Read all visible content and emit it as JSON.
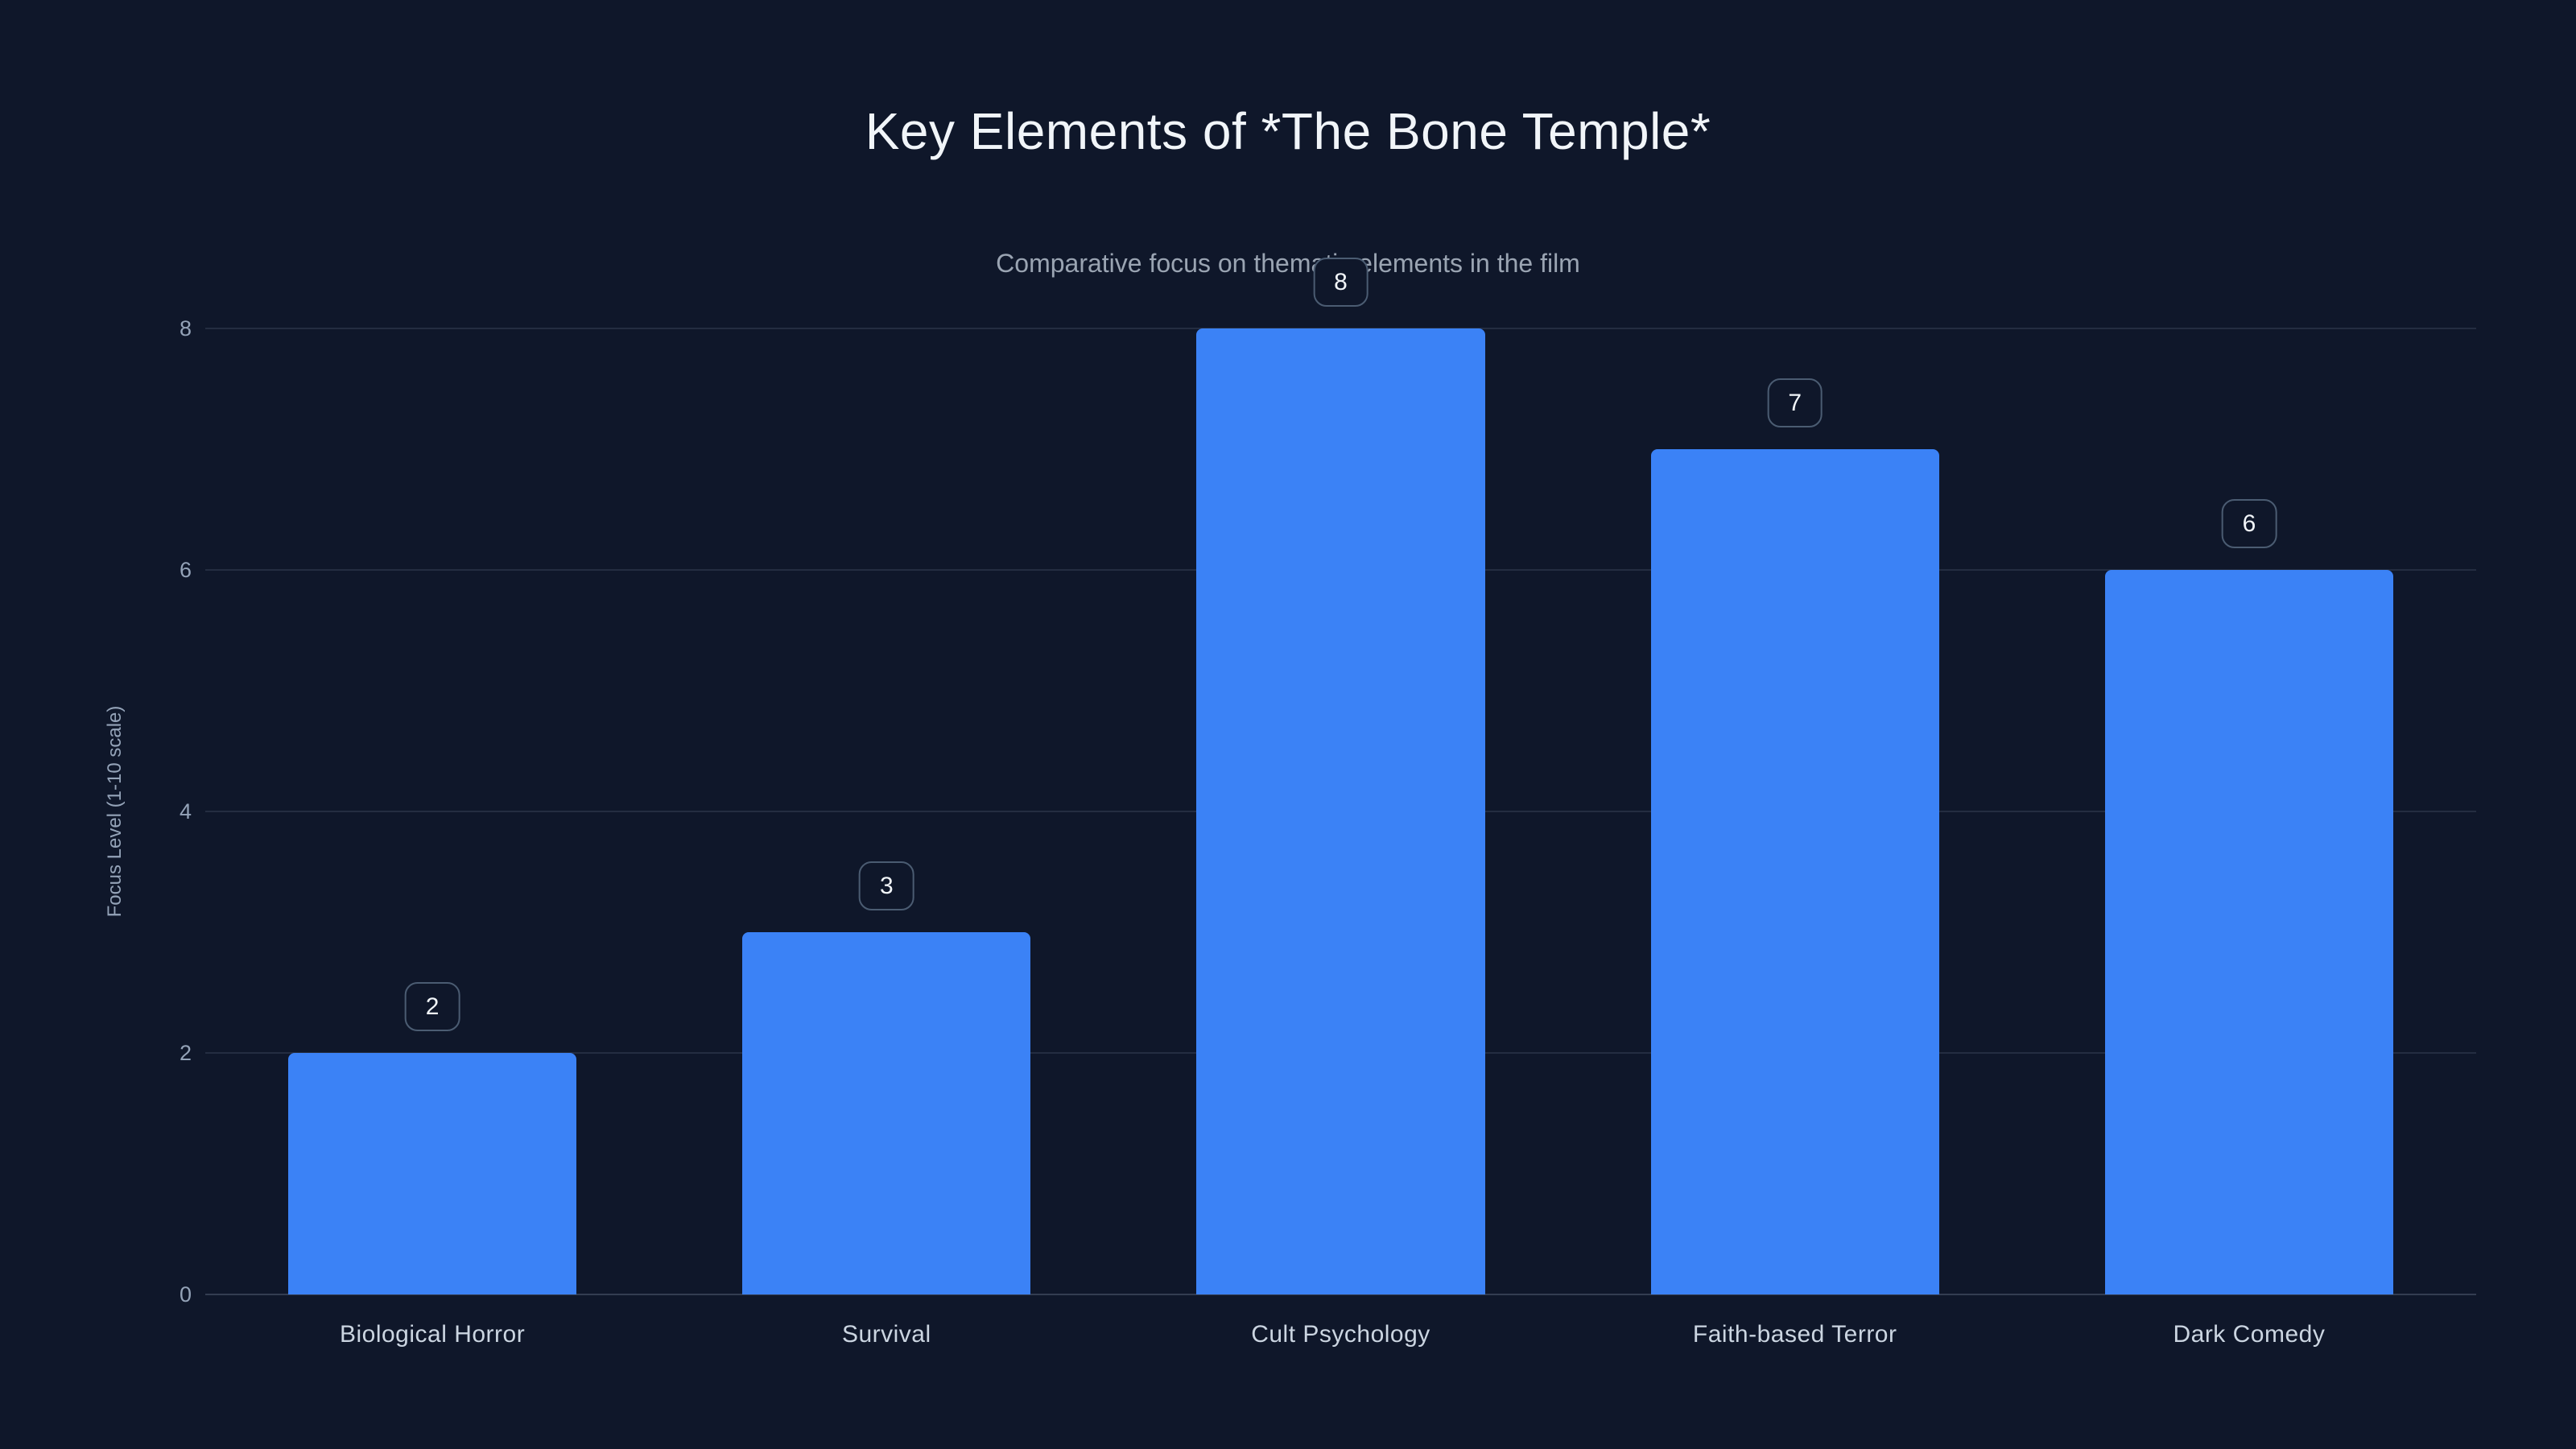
{
  "chart_data": {
    "type": "bar",
    "title": "Key Elements of *The Bone Temple*",
    "subtitle": "Comparative focus on thematic elements in the film",
    "categories": [
      "Biological Horror",
      "Survival",
      "Cult Psychology",
      "Faith-based Terror",
      "Dark Comedy"
    ],
    "values": [
      2,
      3,
      8,
      7,
      6
    ],
    "xlabel": "",
    "ylabel": "Focus Level (1-10 scale)",
    "ylim": [
      0,
      8
    ],
    "yticks": [
      0,
      2,
      4,
      6,
      8
    ],
    "grid": true,
    "legend": "none",
    "colors": {
      "background": "#0f172a",
      "bar": "#3b82f6",
      "gridline": "rgba(148,163,184,0.16)",
      "baseline": "rgba(148,163,184,0.28)",
      "axis_text": "#94a3b8",
      "title_text": "#f1f5f9",
      "subtitle_text": "#9aa4b2",
      "xlabel_text": "#cbd5e1",
      "badge_border": "#4b5c72",
      "badge_text": "#f1f5f9"
    }
  }
}
